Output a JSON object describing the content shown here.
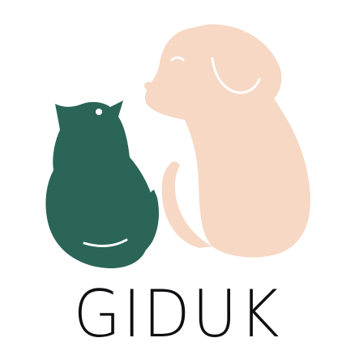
{
  "logo": {
    "wordmark": "GIDUK",
    "colors": {
      "cat": "#2a6558",
      "dog": "#f6d8c4",
      "text": "#0f0f12",
      "background": "#ffffff"
    },
    "icons": [
      "cat-icon",
      "dog-icon"
    ]
  }
}
